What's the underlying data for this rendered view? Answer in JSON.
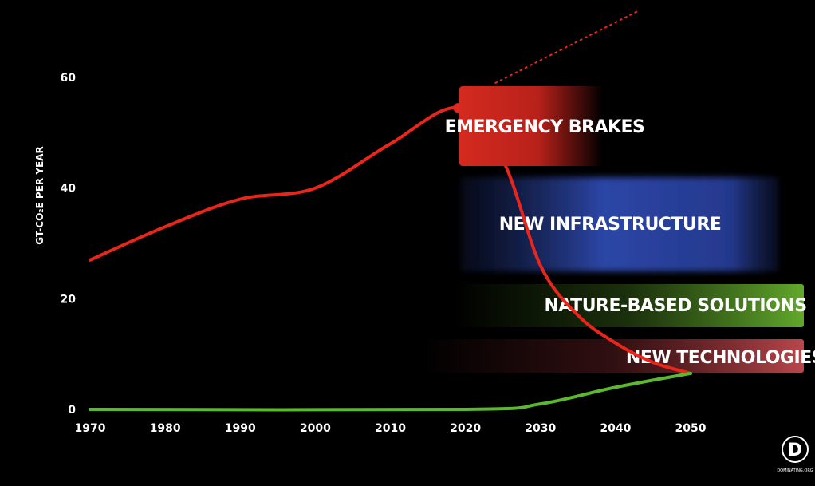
{
  "chart_data": {
    "type": "line",
    "ylabel": "GT-CO₂E PER YEAR",
    "xlim": [
      1970,
      2050
    ],
    "ylim": [
      0,
      60
    ],
    "x_ticks": [
      1970,
      1980,
      1990,
      2000,
      2010,
      2020,
      2030,
      2040,
      2050
    ],
    "y_ticks": [
      0,
      20,
      40,
      60
    ],
    "grid": false,
    "series": [
      {
        "color": "#e8261b",
        "points": [
          [
            1970,
            27
          ],
          [
            1980,
            33
          ],
          [
            1990,
            38
          ],
          [
            2000,
            40
          ],
          [
            2010,
            48
          ],
          [
            2019,
            54.5
          ],
          [
            2025,
            45
          ],
          [
            2030,
            26
          ],
          [
            2035,
            17
          ],
          [
            2040,
            12
          ],
          [
            2045,
            8.5
          ],
          [
            2050,
            6.5
          ]
        ]
      },
      {
        "color": "#5cb82e",
        "points": [
          [
            1970,
            0
          ],
          [
            2020,
            0
          ],
          [
            2030,
            1
          ],
          [
            2040,
            4
          ],
          [
            2050,
            6.5
          ]
        ]
      },
      {
        "color": "#e8261b",
        "dotted": true,
        "points": [
          [
            2024,
            59
          ],
          [
            2043,
            72
          ]
        ]
      }
    ],
    "annotations": [
      {
        "label": "EMERGENCY BRAKES",
        "color": "#c81e18"
      },
      {
        "label": "NEW INFRASTRUCTURE",
        "color": "#2c46a6"
      },
      {
        "label": "NATURE-BASED SOLUTIONS",
        "color": "#5a9c28"
      },
      {
        "label": "NEW TECHNOLOGIES",
        "color": "#a83a3e"
      }
    ]
  },
  "logo": {
    "letter": "D",
    "text": "DOMINATING.ORG"
  }
}
